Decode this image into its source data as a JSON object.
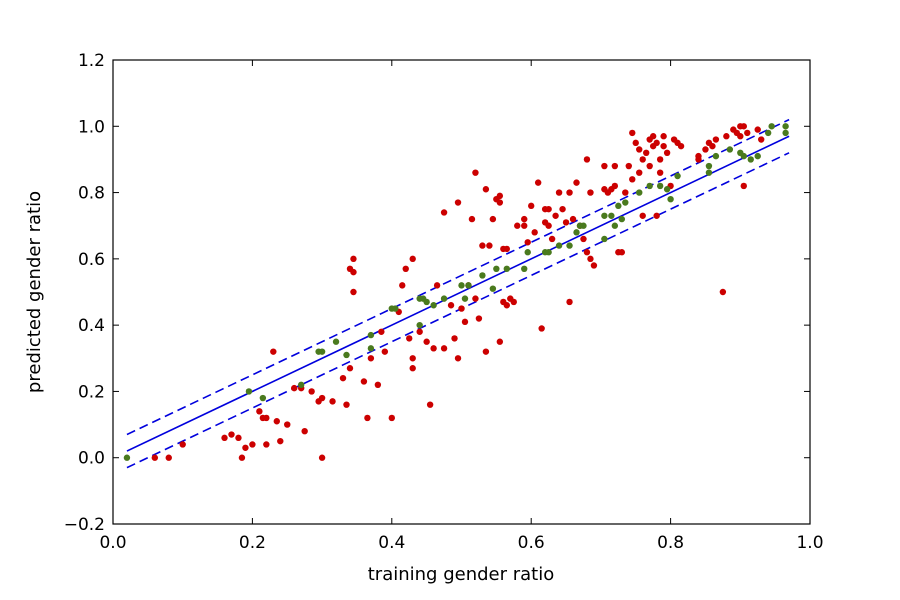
{
  "chart_data": {
    "type": "scatter",
    "title": "",
    "xlabel": "training gender ratio",
    "ylabel": "predicted gender ratio",
    "xlim": [
      0.0,
      1.0
    ],
    "ylim": [
      -0.2,
      1.2
    ],
    "xticks": [
      "0.0",
      "0.2",
      "0.4",
      "0.6",
      "0.8",
      "1.0"
    ],
    "yticks": [
      "−0.2",
      "0.0",
      "0.2",
      "0.4",
      "0.6",
      "0.8",
      "1.0",
      "1.2"
    ],
    "grid": false,
    "legend": "none",
    "series": [
      {
        "color": "#cc0000",
        "points": [
          [
            0.06,
            0.0
          ],
          [
            0.08,
            0.0
          ],
          [
            0.1,
            0.04
          ],
          [
            0.16,
            0.06
          ],
          [
            0.17,
            0.07
          ],
          [
            0.18,
            0.06
          ],
          [
            0.185,
            0.0
          ],
          [
            0.19,
            0.03
          ],
          [
            0.2,
            0.04
          ],
          [
            0.21,
            0.14
          ],
          [
            0.215,
            0.12
          ],
          [
            0.22,
            0.12
          ],
          [
            0.22,
            0.04
          ],
          [
            0.23,
            0.32
          ],
          [
            0.235,
            0.11
          ],
          [
            0.25,
            0.1
          ],
          [
            0.24,
            0.05
          ],
          [
            0.26,
            0.21
          ],
          [
            0.27,
            0.21
          ],
          [
            0.275,
            0.08
          ],
          [
            0.285,
            0.2
          ],
          [
            0.3,
            0.18
          ],
          [
            0.3,
            0.0
          ],
          [
            0.295,
            0.17
          ],
          [
            0.315,
            0.17
          ],
          [
            0.33,
            0.24
          ],
          [
            0.335,
            0.16
          ],
          [
            0.34,
            0.57
          ],
          [
            0.345,
            0.5
          ],
          [
            0.345,
            0.6
          ],
          [
            0.345,
            0.56
          ],
          [
            0.34,
            0.27
          ],
          [
            0.36,
            0.23
          ],
          [
            0.365,
            0.12
          ],
          [
            0.37,
            0.3
          ],
          [
            0.38,
            0.22
          ],
          [
            0.385,
            0.38
          ],
          [
            0.39,
            0.32
          ],
          [
            0.4,
            0.12
          ],
          [
            0.41,
            0.44
          ],
          [
            0.415,
            0.52
          ],
          [
            0.42,
            0.57
          ],
          [
            0.425,
            0.36
          ],
          [
            0.43,
            0.6
          ],
          [
            0.43,
            0.3
          ],
          [
            0.43,
            0.27
          ],
          [
            0.44,
            0.38
          ],
          [
            0.45,
            0.35
          ],
          [
            0.455,
            0.16
          ],
          [
            0.46,
            0.33
          ],
          [
            0.465,
            0.52
          ],
          [
            0.475,
            0.74
          ],
          [
            0.475,
            0.33
          ],
          [
            0.485,
            0.46
          ],
          [
            0.49,
            0.36
          ],
          [
            0.495,
            0.3
          ],
          [
            0.495,
            0.77
          ],
          [
            0.5,
            0.45
          ],
          [
            0.505,
            0.41
          ],
          [
            0.51,
            0.52
          ],
          [
            0.515,
            0.72
          ],
          [
            0.52,
            0.86
          ],
          [
            0.52,
            0.48
          ],
          [
            0.525,
            0.42
          ],
          [
            0.53,
            0.64
          ],
          [
            0.535,
            0.32
          ],
          [
            0.535,
            0.81
          ],
          [
            0.54,
            0.64
          ],
          [
            0.545,
            0.72
          ],
          [
            0.55,
            0.78
          ],
          [
            0.555,
            0.77
          ],
          [
            0.555,
            0.79
          ],
          [
            0.555,
            0.35
          ],
          [
            0.56,
            0.47
          ],
          [
            0.565,
            0.46
          ],
          [
            0.57,
            0.48
          ],
          [
            0.565,
            0.63
          ],
          [
            0.575,
            0.47
          ],
          [
            0.58,
            0.7
          ],
          [
            0.59,
            0.7
          ],
          [
            0.59,
            0.72
          ],
          [
            0.595,
            0.65
          ],
          [
            0.6,
            0.76
          ],
          [
            0.605,
            0.68
          ],
          [
            0.61,
            0.83
          ],
          [
            0.615,
            0.39
          ],
          [
            0.62,
            0.71
          ],
          [
            0.625,
            0.7
          ],
          [
            0.625,
            0.75
          ],
          [
            0.63,
            0.66
          ],
          [
            0.635,
            0.73
          ],
          [
            0.64,
            0.8
          ],
          [
            0.645,
            0.75
          ],
          [
            0.65,
            0.71
          ],
          [
            0.655,
            0.8
          ],
          [
            0.655,
            0.47
          ],
          [
            0.66,
            0.72
          ],
          [
            0.665,
            0.83
          ],
          [
            0.67,
            0.7
          ],
          [
            0.675,
            0.66
          ],
          [
            0.68,
            0.62
          ],
          [
            0.68,
            0.9
          ],
          [
            0.685,
            0.6
          ],
          [
            0.685,
            0.8
          ],
          [
            0.69,
            0.58
          ],
          [
            0.705,
            0.81
          ],
          [
            0.705,
            0.88
          ],
          [
            0.71,
            0.8
          ],
          [
            0.72,
            0.82
          ],
          [
            0.715,
            0.81
          ],
          [
            0.72,
            0.88
          ],
          [
            0.725,
            0.62
          ],
          [
            0.73,
            0.62
          ],
          [
            0.735,
            0.8
          ],
          [
            0.74,
            0.88
          ],
          [
            0.745,
            0.84
          ],
          [
            0.745,
            0.98
          ],
          [
            0.75,
            0.95
          ],
          [
            0.755,
            0.86
          ],
          [
            0.755,
            0.93
          ],
          [
            0.76,
            0.9
          ],
          [
            0.765,
            0.92
          ],
          [
            0.77,
            0.96
          ],
          [
            0.77,
            0.88
          ],
          [
            0.775,
            0.94
          ],
          [
            0.775,
            0.97
          ],
          [
            0.78,
            0.95
          ],
          [
            0.785,
            0.9
          ],
          [
            0.785,
            0.86
          ],
          [
            0.79,
            0.97
          ],
          [
            0.79,
            0.94
          ],
          [
            0.795,
            0.92
          ],
          [
            0.8,
            0.82
          ],
          [
            0.805,
            0.96
          ],
          [
            0.81,
            0.95
          ],
          [
            0.815,
            0.94
          ],
          [
            0.84,
            0.9
          ],
          [
            0.84,
            0.91
          ],
          [
            0.85,
            0.93
          ],
          [
            0.855,
            0.95
          ],
          [
            0.86,
            0.94
          ],
          [
            0.865,
            0.96
          ],
          [
            0.875,
            0.5
          ],
          [
            0.88,
            0.97
          ],
          [
            0.89,
            0.99
          ],
          [
            0.895,
            0.98
          ],
          [
            0.9,
            1.0
          ],
          [
            0.9,
            0.97
          ],
          [
            0.905,
            1.0
          ],
          [
            0.905,
            0.82
          ],
          [
            0.91,
            0.98
          ],
          [
            0.925,
            0.99
          ],
          [
            0.93,
            0.96
          ],
          [
            0.62,
            0.75
          ],
          [
            0.56,
            0.63
          ],
          [
            0.76,
            0.73
          ],
          [
            0.78,
            0.73
          ]
        ]
      },
      {
        "color": "#4a7a1e",
        "points": [
          [
            0.02,
            0.0
          ],
          [
            0.195,
            0.2
          ],
          [
            0.215,
            0.18
          ],
          [
            0.27,
            0.22
          ],
          [
            0.295,
            0.32
          ],
          [
            0.3,
            0.32
          ],
          [
            0.32,
            0.35
          ],
          [
            0.335,
            0.31
          ],
          [
            0.37,
            0.33
          ],
          [
            0.37,
            0.37
          ],
          [
            0.4,
            0.45
          ],
          [
            0.405,
            0.45
          ],
          [
            0.44,
            0.4
          ],
          [
            0.44,
            0.48
          ],
          [
            0.445,
            0.48
          ],
          [
            0.45,
            0.47
          ],
          [
            0.46,
            0.46
          ],
          [
            0.475,
            0.48
          ],
          [
            0.5,
            0.52
          ],
          [
            0.505,
            0.48
          ],
          [
            0.51,
            0.52
          ],
          [
            0.53,
            0.55
          ],
          [
            0.545,
            0.51
          ],
          [
            0.55,
            0.57
          ],
          [
            0.565,
            0.57
          ],
          [
            0.59,
            0.57
          ],
          [
            0.595,
            0.62
          ],
          [
            0.62,
            0.62
          ],
          [
            0.625,
            0.62
          ],
          [
            0.64,
            0.64
          ],
          [
            0.655,
            0.64
          ],
          [
            0.665,
            0.68
          ],
          [
            0.67,
            0.7
          ],
          [
            0.675,
            0.7
          ],
          [
            0.705,
            0.66
          ],
          [
            0.705,
            0.73
          ],
          [
            0.715,
            0.73
          ],
          [
            0.72,
            0.7
          ],
          [
            0.725,
            0.76
          ],
          [
            0.73,
            0.72
          ],
          [
            0.735,
            0.77
          ],
          [
            0.755,
            0.8
          ],
          [
            0.77,
            0.82
          ],
          [
            0.785,
            0.82
          ],
          [
            0.795,
            0.81
          ],
          [
            0.8,
            0.78
          ],
          [
            0.81,
            0.85
          ],
          [
            0.855,
            0.86
          ],
          [
            0.855,
            0.88
          ],
          [
            0.865,
            0.91
          ],
          [
            0.885,
            0.93
          ],
          [
            0.9,
            0.92
          ],
          [
            0.905,
            0.91
          ],
          [
            0.915,
            0.9
          ],
          [
            0.925,
            0.91
          ],
          [
            0.94,
            0.98
          ],
          [
            0.945,
            1.0
          ],
          [
            0.965,
            0.98
          ],
          [
            0.965,
            1.0
          ]
        ]
      }
    ],
    "lines": [
      {
        "style": "solid",
        "color": "#0000dd",
        "from": [
          0.02,
          0.02
        ],
        "to": [
          0.97,
          0.97
        ]
      },
      {
        "style": "dashed",
        "color": "#0000dd",
        "from": [
          0.02,
          0.07
        ],
        "to": [
          0.97,
          1.02
        ]
      },
      {
        "style": "dashed",
        "color": "#0000dd",
        "from": [
          0.02,
          -0.03
        ],
        "to": [
          0.97,
          0.92
        ]
      }
    ]
  }
}
